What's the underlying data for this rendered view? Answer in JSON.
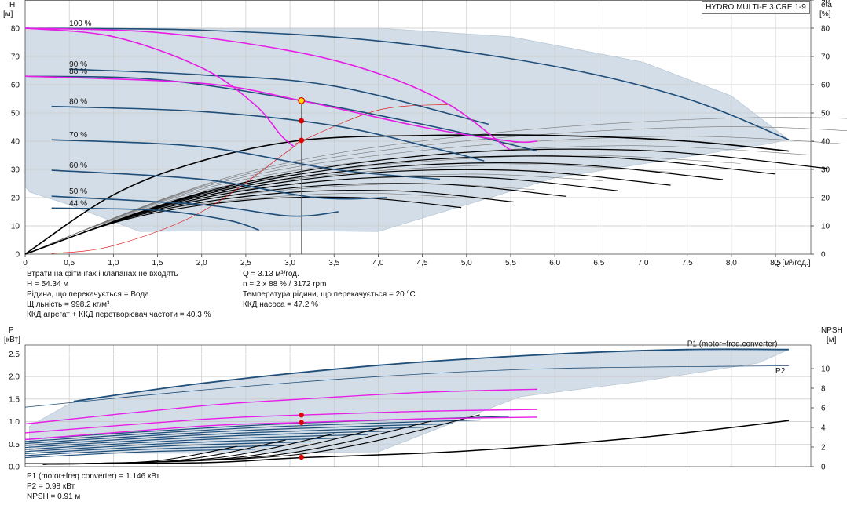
{
  "title": "HYDRO MULTI-E 3 CRE 1-9",
  "colors": {
    "area": "#d3dde7",
    "area_edge": "#b9c8d8",
    "grid": "#c8c8c8",
    "blue": "#1f4e79",
    "black": "#000000",
    "magenta": "#e61ee6",
    "red": "#e00000",
    "gray": "#777777",
    "duty_yellow": "#ffe000"
  },
  "top_info": {
    "left": [
      "Втрати на фітингах і клапанах не входять",
      "H = 54.34 м",
      "Рідина, що перекачується = Вода",
      "Щільність = 998.2 кг/м³",
      "ККД агрегат + ККД перетворювач частоти = 40.3 %"
    ],
    "right": [
      "Q = 3.13 м³/год.",
      "n = 2 x 88 % / 3172 rpm",
      "Температура рідини, що перекачується = 20 °C",
      "ККД насоса = 47.2 %"
    ]
  },
  "bottom_info": [
    "P1 (motor+freq.converter) = 1.146 кВт",
    "P2 = 0.98 кВт",
    "NPSH = 0.91 м"
  ],
  "chart_data": [
    {
      "type": "line",
      "name": "head-curves",
      "xlabel": "Q [м³/год.]",
      "ylabel_left": "H\n[м]",
      "ylabel_right": "eta\n[%]",
      "xlim": [
        0,
        8.9
      ],
      "ylim": [
        0,
        90
      ],
      "ylim_right": [
        0,
        90
      ],
      "x_ticks": [
        0,
        0.5,
        1.0,
        1.5,
        2.0,
        2.5,
        3.0,
        3.5,
        4.0,
        4.5,
        5.0,
        5.5,
        6.0,
        6.5,
        7.0,
        7.5,
        8.0,
        8.5
      ],
      "x_tick_labels": [
        "0",
        "0,5",
        "1,0",
        "1,5",
        "2,0",
        "2,5",
        "3,0",
        "3,5",
        "4,0",
        "4,5",
        "5,0",
        "5,5",
        "6,0",
        "6,5",
        "7,0",
        "7,5",
        "8,0",
        "8,5"
      ],
      "y_ticks": [
        0,
        10,
        20,
        30,
        40,
        50,
        60,
        70,
        80
      ],
      "y_right_ticks": [
        0,
        10,
        20,
        30,
        40,
        50,
        60,
        70,
        80,
        90
      ],
      "grid": true,
      "operating_area": [
        [
          0,
          80
        ],
        [
          4.0,
          80
        ],
        [
          5.5,
          77
        ],
        [
          7.0,
          68
        ],
        [
          8.0,
          56
        ],
        [
          8.65,
          40.5
        ],
        [
          8.4,
          39
        ],
        [
          7.0,
          32
        ],
        [
          6.0,
          27
        ],
        [
          4.0,
          8
        ],
        [
          2.6,
          8.5
        ],
        [
          1.3,
          8
        ],
        [
          0.45,
          18
        ],
        [
          0.05,
          22
        ],
        [
          0,
          24
        ]
      ],
      "speed_curves": [
        {
          "label": "100 %",
          "points": [
            [
              0,
              80
            ],
            [
              2,
              79.3
            ],
            [
              4,
              75.5
            ],
            [
              6,
              66.5
            ],
            [
              7.5,
              55
            ],
            [
              8.65,
              40.5
            ]
          ]
        },
        {
          "label": "90 %",
          "points": [
            [
              0.5,
              65.5
            ],
            [
              2,
              63.5
            ],
            [
              3.5,
              59.5
            ],
            [
              5.25,
              46
            ]
          ]
        },
        {
          "label": "88 %",
          "points": [
            [
              0,
              63
            ],
            [
              1.5,
              61.8
            ],
            [
              3.13,
              54.34
            ],
            [
              4.8,
              44
            ],
            [
              5.8,
              36.5
            ]
          ]
        },
        {
          "label": "80 %",
          "points": [
            [
              0.3,
              52.3
            ],
            [
              2,
              50.5
            ],
            [
              3.5,
              45.5
            ],
            [
              4.7,
              37
            ],
            [
              5.2,
              33
            ]
          ]
        },
        {
          "label": "70 %",
          "points": [
            [
              0.3,
              40.5
            ],
            [
              2,
              38
            ],
            [
              3.5,
              30
            ],
            [
              4.7,
              26.5
            ]
          ]
        },
        {
          "label": "60 %",
          "points": [
            [
              0.3,
              29.7
            ],
            [
              2,
              26.5
            ],
            [
              3.3,
              20
            ],
            [
              4.1,
              20
            ]
          ]
        },
        {
          "label": "50 %",
          "points": [
            [
              0.3,
              20.5
            ],
            [
              2,
              17.5
            ],
            [
              3.0,
              13.5
            ],
            [
              3.55,
              15
            ]
          ]
        },
        {
          "label": "44 %",
          "points": [
            [
              0.3,
              16.3
            ],
            [
              1.5,
              15.5
            ],
            [
              2.3,
              12
            ],
            [
              2.65,
              8.5
            ]
          ]
        }
      ],
      "magenta_curves": [
        [
          [
            0,
            80
          ],
          [
            1.0,
            77
          ],
          [
            2.0,
            66
          ],
          [
            2.6,
            53
          ],
          [
            2.9,
            42
          ],
          [
            3.05,
            38
          ]
        ],
        [
          [
            0,
            80
          ],
          [
            1.5,
            78.5
          ],
          [
            3.0,
            72
          ],
          [
            4.0,
            64
          ],
          [
            4.8,
            53
          ],
          [
            5.4,
            39
          ],
          [
            5.5,
            37
          ]
        ],
        [
          [
            0,
            63
          ],
          [
            2.0,
            60.5
          ],
          [
            3.13,
            54.34
          ],
          [
            4.5,
            45
          ],
          [
            5.5,
            40
          ],
          [
            5.8,
            40
          ]
        ]
      ],
      "system_curve": [
        [
          0.3,
          0.2
        ],
        [
          1.0,
          3
        ],
        [
          2.0,
          15
        ],
        [
          3.0,
          37
        ],
        [
          3.13,
          40
        ],
        [
          4.0,
          51
        ],
        [
          4.8,
          53
        ]
      ],
      "efficiency_curve_main": [
        [
          0,
          0
        ],
        [
          1.0,
          21
        ],
        [
          2.0,
          33
        ],
        [
          3.13,
          40.3
        ],
        [
          4.5,
          42
        ],
        [
          6.0,
          42
        ],
        [
          7.5,
          40
        ],
        [
          8.65,
          36.5
        ]
      ],
      "duty_point": {
        "q": 3.13,
        "h": 54.34
      },
      "duty_vertical": {
        "q": 3.13,
        "from": 0,
        "to": 54.34
      },
      "red_points": [
        [
          3.13,
          47.2
        ],
        [
          3.13,
          40.3
        ]
      ],
      "speed_labels": [
        "100 %",
        "90 %",
        "88 %",
        "80 %",
        "70 %",
        "60 %",
        "50 %",
        "44 %"
      ]
    },
    {
      "type": "line",
      "name": "power-npsh-curves",
      "xlim": [
        0,
        8.9
      ],
      "ylabel_left": "P\n[кВт]",
      "ylabel_right": "NPSH\n[м]",
      "ylim": [
        0,
        2.7
      ],
      "ylim_right": [
        0,
        12.4
      ],
      "y_ticks": [
        0,
        0.5,
        1.0,
        1.5,
        2.0,
        2.5
      ],
      "y_tick_labels": [
        "0.0",
        "0.5",
        "1.0",
        "1.5",
        "2.0",
        "2.5"
      ],
      "y_right_ticks": [
        0,
        2,
        4,
        6,
        8,
        10
      ],
      "grid": true,
      "p1_label": "P1 (motor+freq.converter)",
      "p2_label": "P2",
      "p1_max": [
        [
          0.55,
          1.45
        ],
        [
          2.0,
          1.85
        ],
        [
          4.0,
          2.25
        ],
        [
          6.0,
          2.5
        ],
        [
          7.5,
          2.6
        ],
        [
          8.65,
          2.6
        ]
      ],
      "p2_max": [
        [
          0,
          1.32
        ],
        [
          2.0,
          1.7
        ],
        [
          4.0,
          2.0
        ],
        [
          6.0,
          2.18
        ],
        [
          8.65,
          2.24
        ]
      ],
      "power_area": [
        [
          0.05,
          0.9
        ],
        [
          0.55,
          1.45
        ],
        [
          2.0,
          1.85
        ],
        [
          4.0,
          2.25
        ],
        [
          6.0,
          2.5
        ],
        [
          7.5,
          2.6
        ],
        [
          8.65,
          2.6
        ],
        [
          8.3,
          2.3
        ],
        [
          7.0,
          1.9
        ],
        [
          5.6,
          1.55
        ],
        [
          4.0,
          0.33
        ],
        [
          2.0,
          0.3
        ],
        [
          0.5,
          0.3
        ],
        [
          0.05,
          0.35
        ]
      ],
      "p1_at_duty": 1.146,
      "p2_at_duty": 0.98,
      "npsh_at_duty": 0.91,
      "magenta_power": [
        [
          [
            0,
            0.75
          ],
          [
            2.0,
            1.05
          ],
          [
            3.13,
            1.146
          ],
          [
            4.5,
            1.23
          ],
          [
            5.8,
            1.27
          ]
        ],
        [
          [
            0,
            0.6
          ],
          [
            2.0,
            0.9
          ],
          [
            3.13,
            0.98
          ],
          [
            4.5,
            1.06
          ],
          [
            5.8,
            1.1
          ]
        ],
        [
          [
            0,
            0.95
          ],
          [
            2.0,
            1.35
          ],
          [
            3.13,
            1.5
          ],
          [
            4.5,
            1.65
          ],
          [
            5.8,
            1.72
          ]
        ]
      ],
      "npsh_curve": [
        [
          0,
          0.3
        ],
        [
          2.0,
          0.4
        ],
        [
          3.13,
          0.91
        ],
        [
          5.0,
          1.6
        ],
        [
          7.0,
          3.0
        ],
        [
          8.65,
          4.7
        ]
      ],
      "red_points": [
        [
          3.13,
          1.146
        ],
        [
          3.13,
          0.98
        ],
        [
          3.13,
          0.21
        ]
      ]
    }
  ]
}
